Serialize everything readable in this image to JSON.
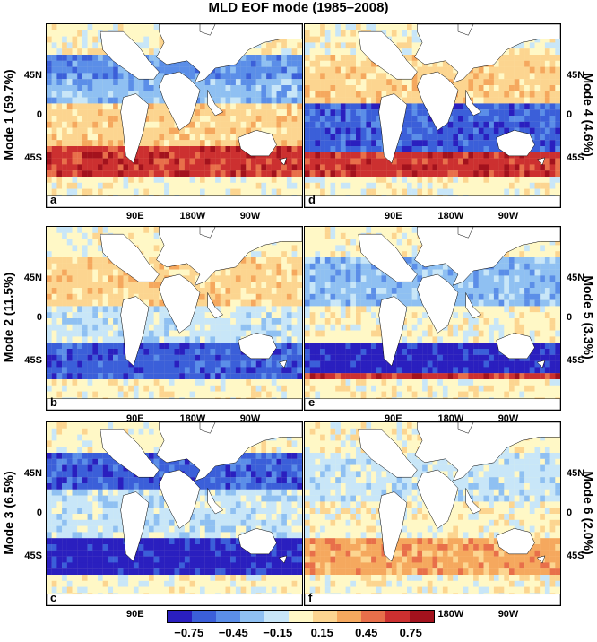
{
  "title": "MLD EOF mode (1985–2008)",
  "lat_labels": [
    "45N",
    "0",
    "45S"
  ],
  "lon_labels": [
    "90E",
    "180W",
    "90W"
  ],
  "colorbar": {
    "colors": [
      "#2a1fbf",
      "#3b5fd9",
      "#5b8ee8",
      "#8fc0f2",
      "#c8e6f8",
      "#fff8c6",
      "#fcd590",
      "#f5a85e",
      "#e86f4a",
      "#cc3030",
      "#a3121d"
    ],
    "tick_labels": [
      "−0.75",
      "−0.45",
      "−0.15",
      "0.15",
      "0.45",
      "0.75"
    ]
  },
  "chart_data": {
    "type": "heatmap",
    "title": "MLD EOF mode (1985–2008)",
    "color_scale": {
      "min": -0.9,
      "max": 0.9,
      "ticks": [
        -0.75,
        -0.45,
        -0.15,
        0.15,
        0.45,
        0.75
      ]
    },
    "panels": [
      {
        "letter": "a",
        "mode": "Mode 1 (59.7%)",
        "variance_pct": 59.7
      },
      {
        "letter": "b",
        "mode": "Mode 2 (11.5%)",
        "variance_pct": 11.5
      },
      {
        "letter": "c",
        "mode": "Mode 3 (6.5%)",
        "variance_pct": 6.5
      },
      {
        "letter": "d",
        "mode": "Mode 4 (4.6%)",
        "variance_pct": 4.6
      },
      {
        "letter": "e",
        "mode": "Mode 5 (3.3%)",
        "variance_pct": 3.3
      },
      {
        "letter": "f",
        "mode": "Mode 6 (2.0%)",
        "variance_pct": 2.0
      }
    ]
  }
}
